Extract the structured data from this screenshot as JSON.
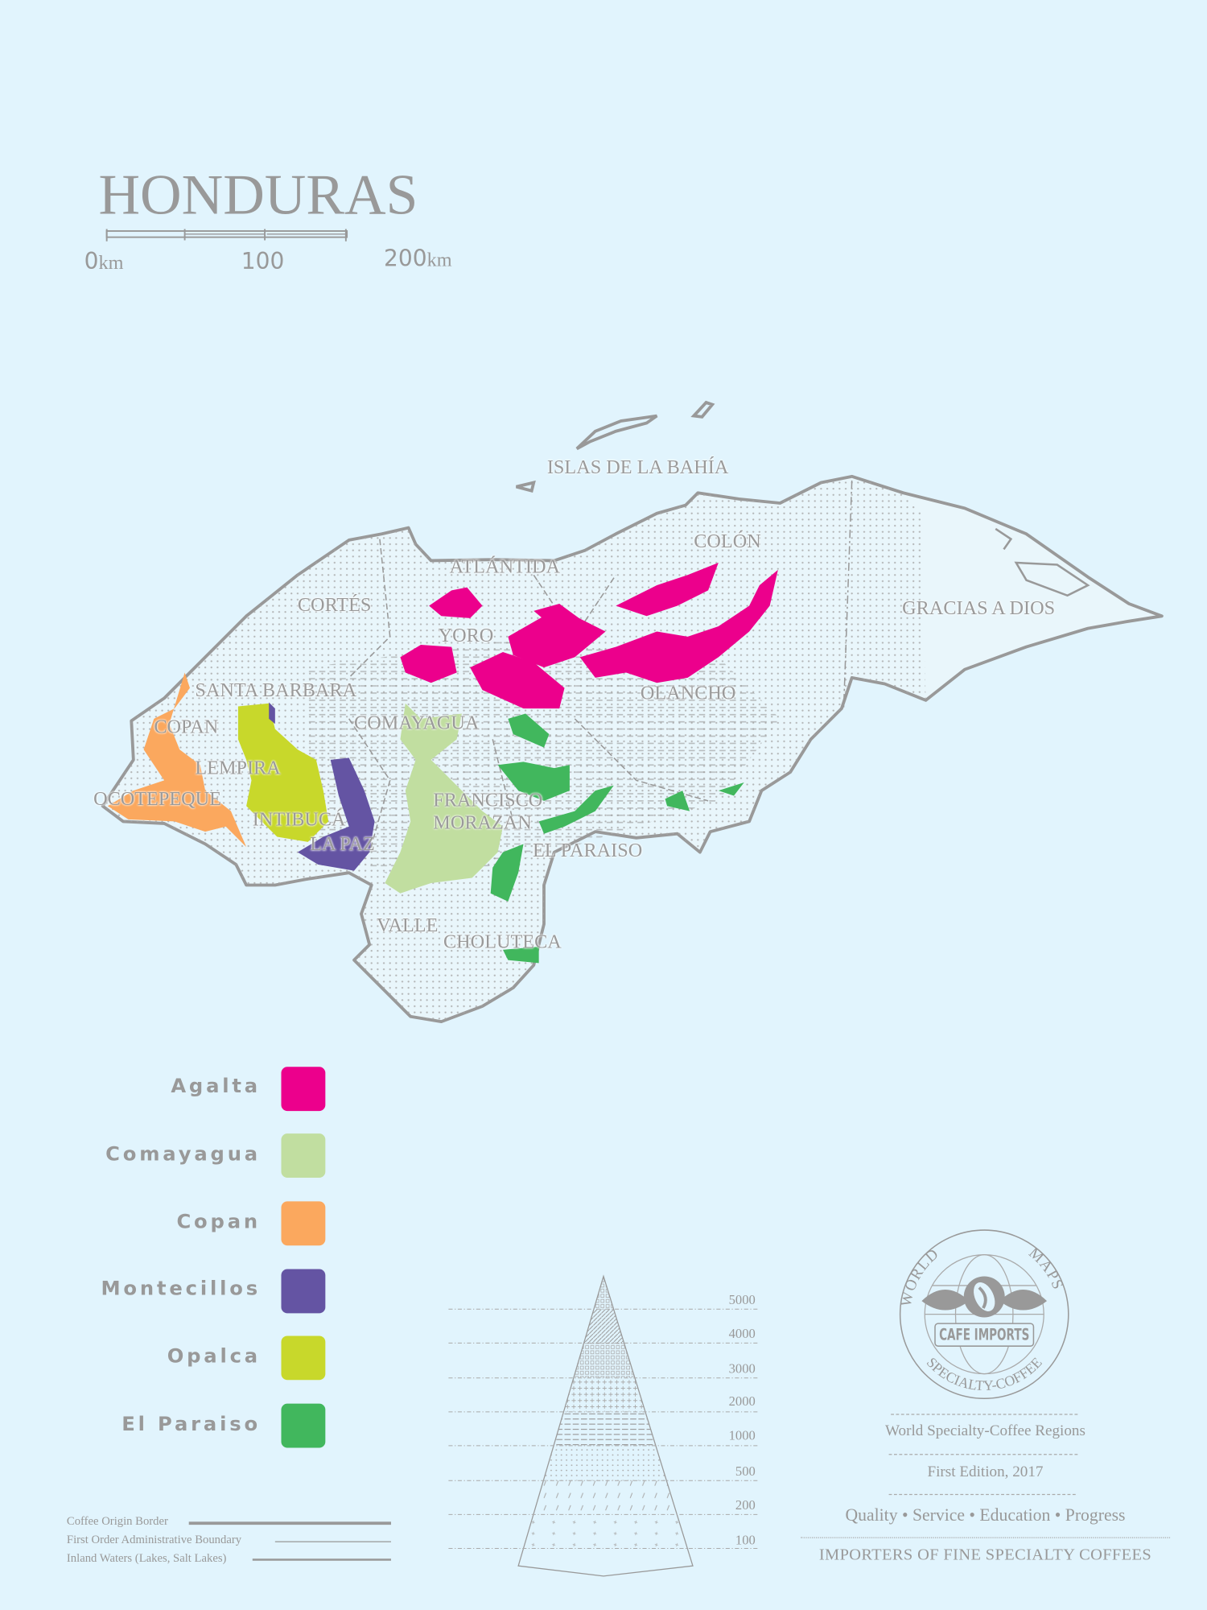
{
  "title": "HONDURAS",
  "scale_bar": {
    "start": "0",
    "start_unit": "km",
    "mid": "100",
    "end": "200",
    "end_unit": "km"
  },
  "regions_labels": [
    "ISLAS DE LA BAHÍA",
    "COLÓN",
    "ATLÁNTIDA",
    "CORTÉS",
    "GRACIAS A DIOS",
    "YORO",
    "SANTA BARBARA",
    "OLANCHO",
    "COPAN",
    "COMAYAGUA",
    "LEMPIRA",
    "OCOTEPEQUE",
    "FRANCISCO",
    "MORAZAN",
    "INTIBUCÁ",
    "LA PAZ",
    "EL PARAISO",
    "VALLE",
    "CHOLUTECA"
  ],
  "legend": [
    {
      "label": "Agalta",
      "color": "#ec008c"
    },
    {
      "label": "Comayagua",
      "color": "#c1dea0"
    },
    {
      "label": "Copan",
      "color": "#fba85e"
    },
    {
      "label": "Montecillos",
      "color": "#6454a3"
    },
    {
      "label": "Opalca",
      "color": "#c8d82b"
    },
    {
      "label": "El Paraiso",
      "color": "#41b75d"
    }
  ],
  "altitude_scale": {
    "levels": [
      "5000",
      "4000",
      "3000",
      "2000",
      "1000",
      "500",
      "200",
      "100"
    ]
  },
  "line_legend": [
    "Coffee Origin Border",
    "First Order Administrative Boundary",
    "Inland Waters (Lakes, Salt Lakes)"
  ],
  "logo": {
    "top": "WORLD",
    "top_right": "MAPS",
    "banner": "CAFE IMPORTS",
    "bottom": "SPECIALTY-COFFEE"
  },
  "info": {
    "series": "World Specialty-Coffee Regions",
    "edition": "First Edition, 2017",
    "motto": "Quality • Service • Education • Progress",
    "tagline": "IMPORTERS OF FINE SPECIALTY COFFEES"
  },
  "colors": {
    "background": "#e1f4fd",
    "ink": "#999999"
  }
}
